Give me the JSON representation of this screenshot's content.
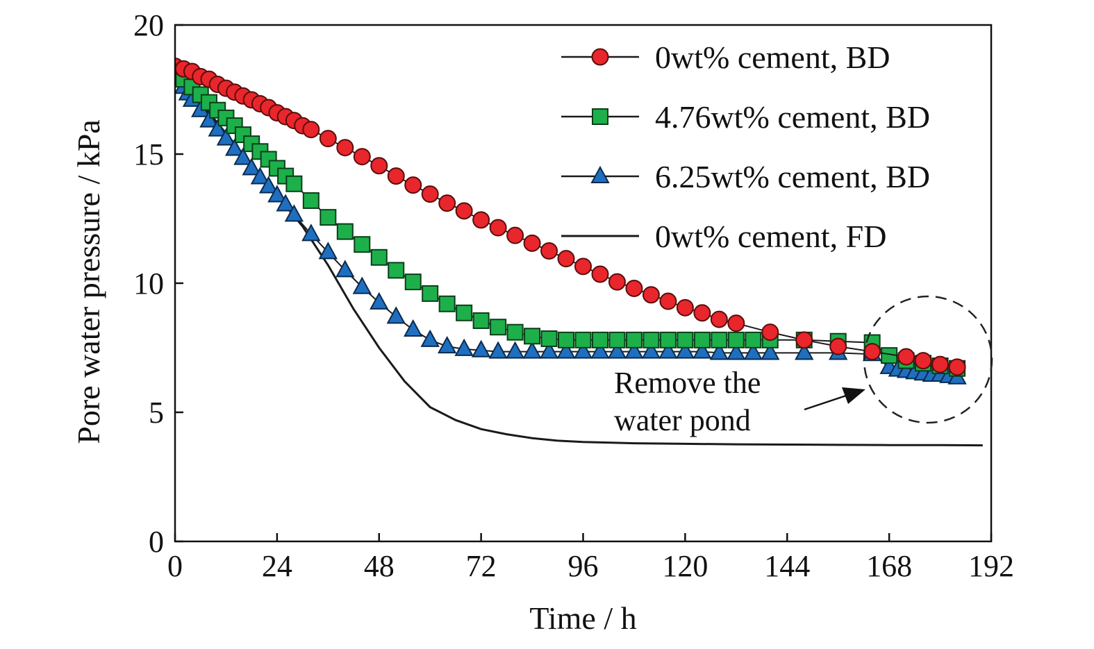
{
  "chart_data": {
    "type": "line",
    "xlabel": "Time / h",
    "ylabel": "Pore water pressure / kPa",
    "xlim": [
      0,
      192
    ],
    "ylim": [
      0,
      20
    ],
    "xticks": [
      "0",
      "24",
      "48",
      "72",
      "96",
      "120",
      "144",
      "168",
      "192"
    ],
    "yticks": [
      "0",
      "5",
      "10",
      "15",
      "20"
    ],
    "grid": false,
    "legend_position": "top-right",
    "series": [
      {
        "name": "0wt% cement, BD",
        "marker": "circle",
        "color": "#e8262b",
        "edge": "#5a0d0d",
        "x": [
          0,
          2,
          4,
          6,
          8,
          10,
          12,
          14,
          16,
          18,
          20,
          22,
          24,
          26,
          28,
          30,
          32,
          36,
          40,
          44,
          48,
          52,
          56,
          60,
          64,
          68,
          72,
          76,
          80,
          84,
          88,
          92,
          96,
          100,
          104,
          108,
          112,
          116,
          120,
          124,
          128,
          132,
          140,
          148,
          156,
          164,
          172,
          176,
          180,
          184
        ],
        "y": [
          18.4,
          18.3,
          18.2,
          18.0,
          17.9,
          17.7,
          17.55,
          17.4,
          17.25,
          17.1,
          16.95,
          16.8,
          16.6,
          16.45,
          16.3,
          16.1,
          15.95,
          15.6,
          15.25,
          14.9,
          14.55,
          14.15,
          13.8,
          13.45,
          13.1,
          12.8,
          12.45,
          12.15,
          11.85,
          11.55,
          11.25,
          10.95,
          10.65,
          10.35,
          10.05,
          9.8,
          9.55,
          9.3,
          9.05,
          8.85,
          8.6,
          8.45,
          8.1,
          7.8,
          7.55,
          7.35,
          7.15,
          7.0,
          6.85,
          6.75
        ]
      },
      {
        "name": "4.76wt% cement, BD",
        "marker": "square",
        "color": "#1db04a",
        "edge": "#0b3d1a",
        "x": [
          0,
          1,
          2,
          4,
          6,
          8,
          10,
          12,
          14,
          16,
          18,
          20,
          22,
          24,
          26,
          28,
          32,
          36,
          40,
          44,
          48,
          52,
          56,
          60,
          64,
          68,
          72,
          76,
          80,
          84,
          88,
          92,
          96,
          100,
          104,
          108,
          112,
          116,
          120,
          124,
          128,
          132,
          136,
          140,
          148,
          156,
          164,
          168,
          172,
          176,
          180,
          184
        ],
        "y": [
          18.3,
          18.1,
          17.9,
          17.6,
          17.3,
          17.0,
          16.7,
          16.4,
          16.1,
          15.75,
          15.4,
          15.1,
          14.8,
          14.45,
          14.15,
          13.85,
          13.2,
          12.55,
          12.0,
          11.5,
          11.0,
          10.5,
          10.05,
          9.6,
          9.2,
          8.85,
          8.55,
          8.3,
          8.1,
          7.95,
          7.85,
          7.8,
          7.8,
          7.8,
          7.8,
          7.8,
          7.8,
          7.8,
          7.8,
          7.8,
          7.8,
          7.8,
          7.8,
          7.8,
          7.8,
          7.75,
          7.7,
          7.2,
          7.0,
          6.9,
          6.8,
          6.7
        ]
      },
      {
        "name": "6.25wt% cement, BD",
        "marker": "triangle",
        "color": "#1f6fc0",
        "edge": "#0a2a4d",
        "x": [
          0,
          1,
          2,
          3,
          4,
          6,
          8,
          10,
          12,
          14,
          16,
          18,
          20,
          22,
          24,
          26,
          28,
          32,
          36,
          40,
          44,
          48,
          52,
          56,
          60,
          64,
          68,
          72,
          76,
          80,
          84,
          88,
          92,
          96,
          100,
          104,
          108,
          112,
          116,
          120,
          124,
          128,
          132,
          136,
          140,
          148,
          156,
          164,
          168,
          170,
          172,
          174,
          176,
          178,
          180,
          182,
          184
        ],
        "y": [
          18.2,
          17.9,
          17.6,
          17.35,
          17.1,
          16.7,
          16.3,
          15.95,
          15.6,
          15.2,
          14.85,
          14.45,
          14.1,
          13.75,
          13.4,
          13.05,
          12.65,
          11.9,
          11.2,
          10.5,
          9.85,
          9.25,
          8.7,
          8.2,
          7.8,
          7.55,
          7.45,
          7.4,
          7.35,
          7.35,
          7.35,
          7.35,
          7.35,
          7.35,
          7.35,
          7.35,
          7.35,
          7.35,
          7.35,
          7.35,
          7.35,
          7.3,
          7.3,
          7.3,
          7.3,
          7.3,
          7.3,
          7.25,
          6.75,
          6.65,
          6.6,
          6.55,
          6.5,
          6.45,
          6.45,
          6.4,
          6.35
        ]
      },
      {
        "name": "0wt% cement, FD",
        "marker": "none",
        "color": "#1a1a1a",
        "x": [
          0,
          8,
          16,
          24,
          30,
          36,
          42,
          48,
          54,
          60,
          66,
          72,
          78,
          84,
          90,
          96,
          108,
          120,
          132,
          144,
          156,
          168,
          180,
          190
        ],
        "y": [
          18.2,
          16.6,
          15.0,
          13.4,
          12.2,
          10.7,
          9.0,
          7.5,
          6.2,
          5.2,
          4.7,
          4.35,
          4.15,
          4.0,
          3.9,
          3.85,
          3.8,
          3.78,
          3.76,
          3.75,
          3.74,
          3.73,
          3.73,
          3.72
        ]
      }
    ],
    "annotations": [
      {
        "text_lines": [
          "Remove the",
          "water pond"
        ]
      }
    ]
  }
}
